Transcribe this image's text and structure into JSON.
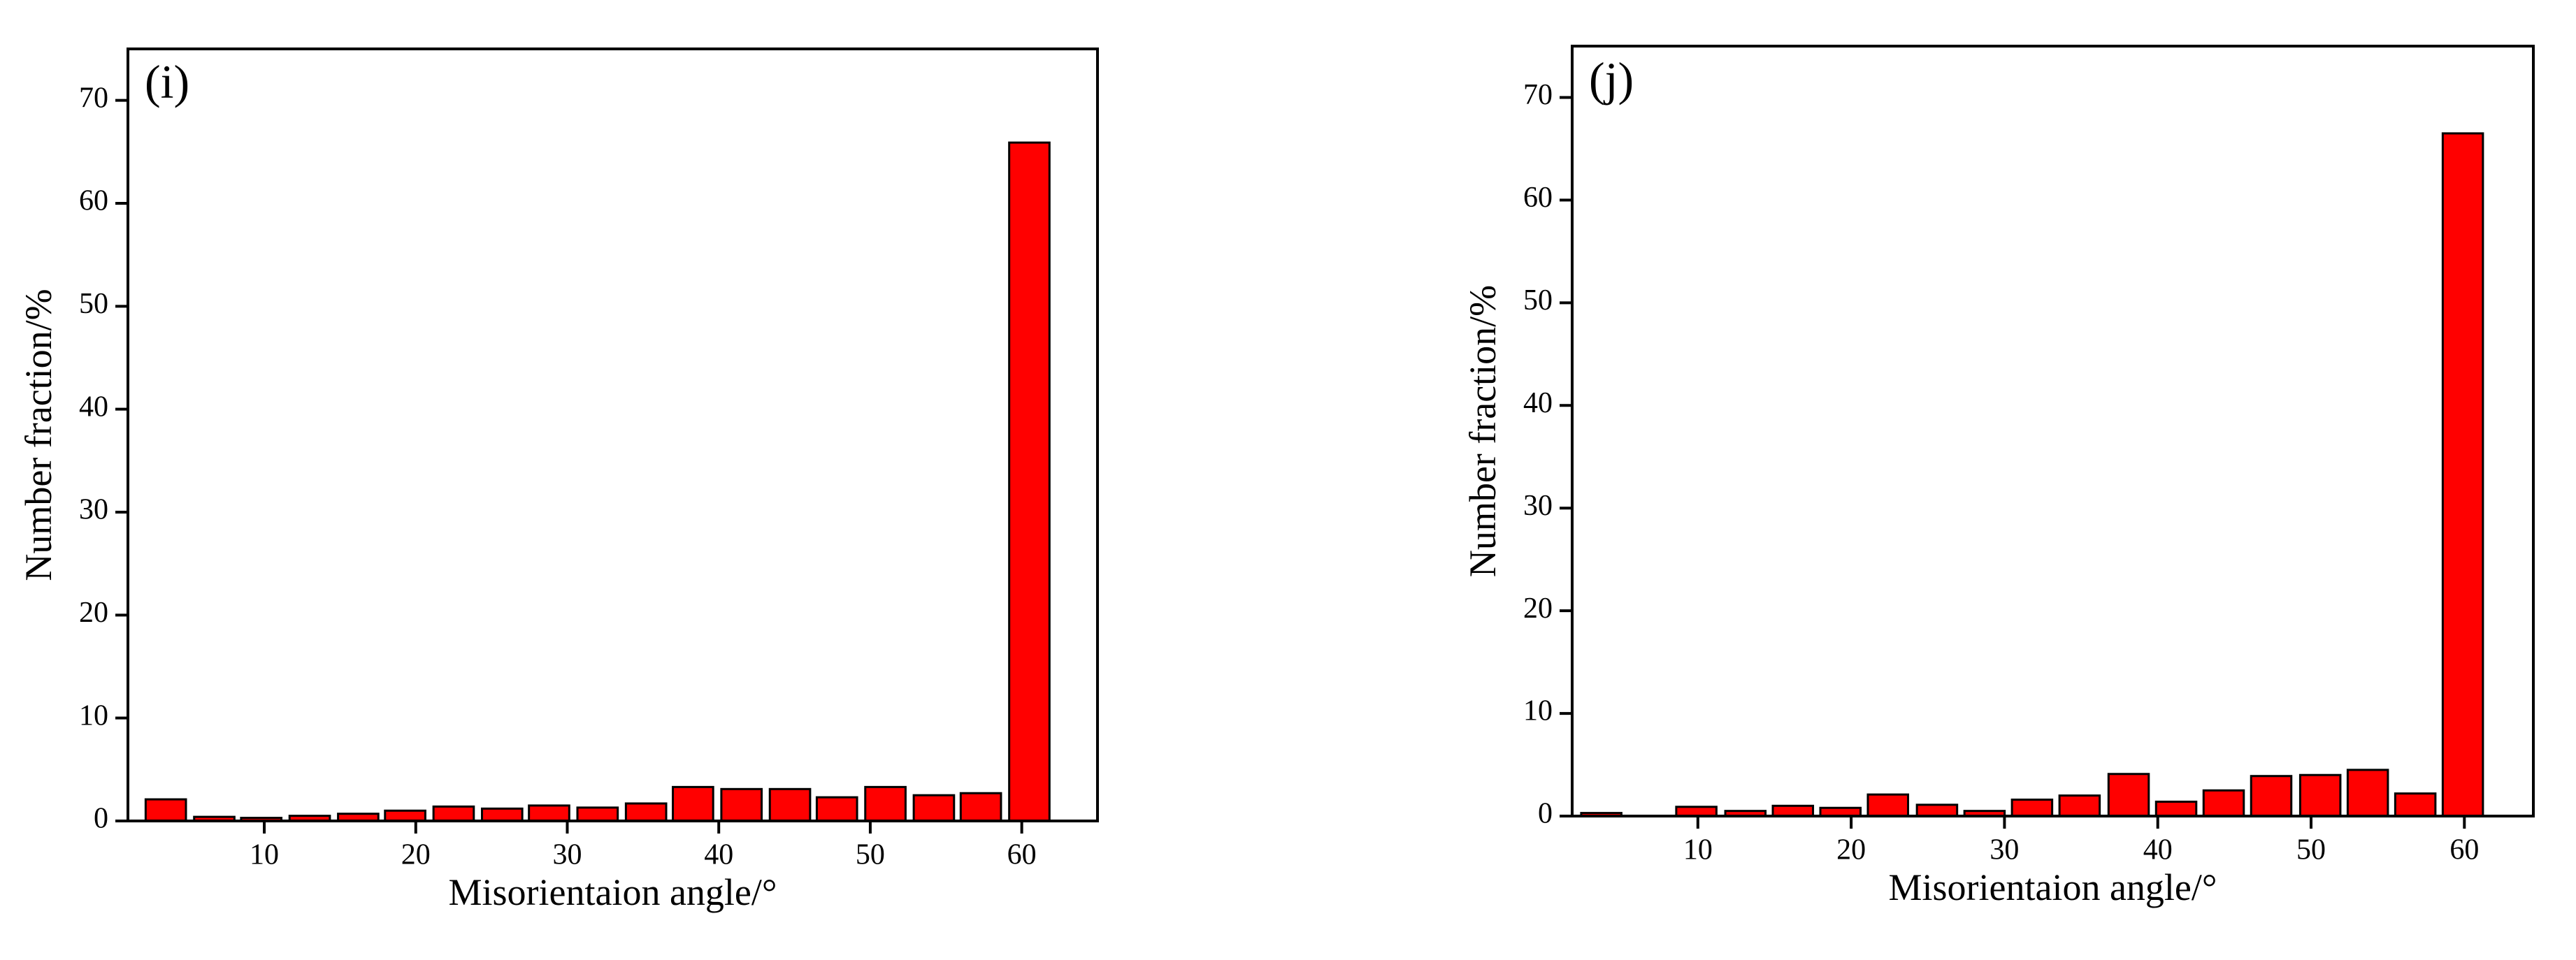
{
  "chart_data": [
    {
      "type": "bar",
      "title": "(i)",
      "x_label": "Misorientaion angle/°",
      "y_label": "Number fraction/%",
      "x": [
        3.5,
        6.7,
        9.8,
        13.0,
        16.2,
        19.3,
        22.5,
        25.7,
        28.8,
        32.0,
        35.2,
        38.3,
        41.5,
        44.7,
        47.8,
        51.0,
        54.2,
        57.3,
        60.5
      ],
      "values": [
        2.1,
        0.4,
        0.3,
        0.5,
        0.7,
        1.0,
        1.4,
        1.2,
        1.5,
        1.3,
        1.7,
        3.3,
        3.1,
        3.1,
        2.3,
        3.3,
        2.5,
        2.7,
        65.9
      ],
      "color": "#ff0000",
      "xlim": [
        1,
        65
      ],
      "ylim": [
        0,
        75
      ],
      "xticks": [
        10,
        20,
        30,
        40,
        50,
        60
      ],
      "yticks": [
        0,
        10,
        20,
        30,
        40,
        50,
        60,
        70
      ]
    },
    {
      "type": "bar",
      "title": "(j)",
      "x_label": "Misorientaion angle/°",
      "y_label": "Number fraction/%",
      "x": [
        3.7,
        6.8,
        9.9,
        13.1,
        16.2,
        19.3,
        22.4,
        25.6,
        28.7,
        31.8,
        34.9,
        38.1,
        41.2,
        44.3,
        47.4,
        50.6,
        53.7,
        56.8,
        59.9
      ],
      "values": [
        0.3,
        0,
        0.9,
        0.5,
        1.0,
        0.8,
        2.1,
        1.1,
        0.5,
        1.6,
        2.0,
        4.1,
        1.4,
        2.5,
        3.9,
        4.0,
        4.5,
        2.2,
        66.5
      ],
      "color": "#ff0000",
      "xlim": [
        1.8,
        64.5
      ],
      "ylim": [
        0,
        75
      ],
      "xticks": [
        10,
        20,
        30,
        40,
        50,
        60
      ],
      "yticks": [
        0,
        10,
        20,
        30,
        40,
        50,
        60,
        70
      ]
    }
  ]
}
